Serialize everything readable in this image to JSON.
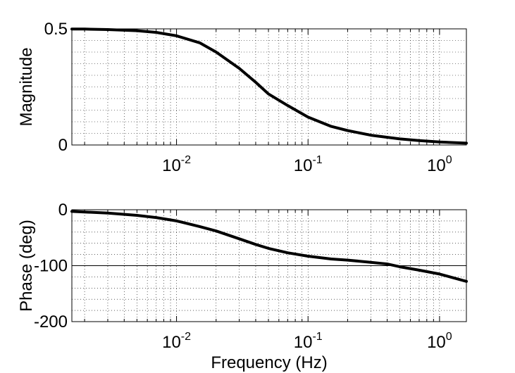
{
  "chart_data": [
    {
      "type": "line",
      "xscale": "log",
      "xlim": [
        0.0016,
        1.6
      ],
      "ylim": [
        0,
        0.5
      ],
      "ylabel": "Magnitude",
      "xlabel": "",
      "grid": true,
      "xticks": [
        {
          "value": 0.01,
          "base": "10",
          "exp": "-2"
        },
        {
          "value": 0.1,
          "base": "10",
          "exp": "-1"
        },
        {
          "value": 1,
          "base": "10",
          "exp": "0"
        }
      ],
      "yticks": [
        {
          "value": 0,
          "label": "0"
        },
        {
          "value": 0.5,
          "label": "0.5"
        }
      ],
      "series": [
        {
          "color": "#000000",
          "x": [
            0.0016,
            0.002,
            0.003,
            0.005,
            0.007,
            0.01,
            0.015,
            0.02,
            0.03,
            0.04,
            0.05,
            0.07,
            0.1,
            0.15,
            0.2,
            0.3,
            0.5,
            0.7,
            1.0,
            1.6
          ],
          "y": [
            0.499,
            0.499,
            0.497,
            0.492,
            0.485,
            0.47,
            0.44,
            0.4,
            0.33,
            0.27,
            0.22,
            0.17,
            0.12,
            0.08,
            0.062,
            0.042,
            0.026,
            0.019,
            0.013,
            0.008
          ]
        }
      ]
    },
    {
      "type": "line",
      "xscale": "log",
      "xlim": [
        0.0016,
        1.6
      ],
      "ylim": [
        -200,
        0
      ],
      "ylabel": "Phase (deg)",
      "xlabel": "Frequency (Hz)",
      "grid": true,
      "xticks": [
        {
          "value": 0.01,
          "base": "10",
          "exp": "-2"
        },
        {
          "value": 0.1,
          "base": "10",
          "exp": "-1"
        },
        {
          "value": 1,
          "base": "10",
          "exp": "0"
        }
      ],
      "yticks": [
        {
          "value": 0,
          "label": "0"
        },
        {
          "value": -100,
          "label": "-100"
        },
        {
          "value": -200,
          "label": "-200"
        }
      ],
      "hlines": [
        0,
        -100
      ],
      "series": [
        {
          "color": "#000000",
          "x": [
            0.0016,
            0.002,
            0.003,
            0.005,
            0.007,
            0.01,
            0.015,
            0.02,
            0.03,
            0.04,
            0.05,
            0.07,
            0.1,
            0.15,
            0.2,
            0.3,
            0.4,
            0.5,
            0.7,
            1.0,
            1.6
          ],
          "y": [
            -3,
            -4,
            -6,
            -10,
            -14,
            -20,
            -30,
            -38,
            -52,
            -62,
            -69,
            -77,
            -83,
            -88,
            -90,
            -94,
            -97,
            -102,
            -108,
            -115,
            -128
          ]
        }
      ]
    }
  ]
}
